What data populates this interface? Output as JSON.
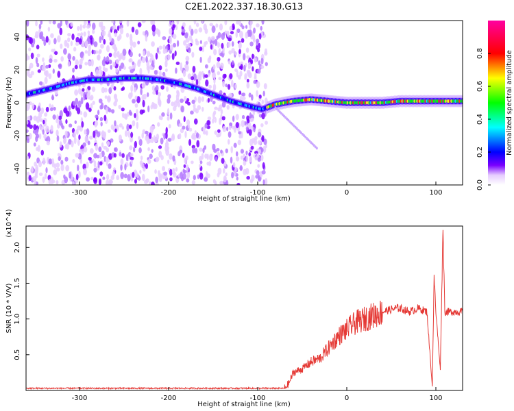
{
  "chart_data": [
    {
      "type": "heatmap",
      "title": "C2E1.2022.337.18.30.G13",
      "xlabel": "Height of straight line (km)",
      "ylabel": "Frequency (Hz)",
      "xlim": [
        -360,
        130
      ],
      "ylim": [
        -50,
        50
      ],
      "x_ticks": [
        -300,
        -200,
        -100,
        0,
        100
      ],
      "y_ticks": [
        -40,
        -20,
        0,
        20,
        40
      ],
      "colorbar": {
        "label": "Normalized spectral amplitude",
        "range": [
          0,
          1
        ],
        "ticks": [
          0.0,
          0.2,
          0.4,
          0.6,
          0.8
        ],
        "colors": [
          "#ffffff",
          "#d9b3ff",
          "#7a00ff",
          "#0000ff",
          "#00ffff",
          "#00ff00",
          "#ffff00",
          "#ff0000",
          "#ff00ff"
        ]
      },
      "noise_region_x": [
        -360,
        -90
      ],
      "ridge": {
        "x": [
          -360,
          -345,
          -330,
          -310,
          -290,
          -270,
          -250,
          -230,
          -210,
          -190,
          -170,
          -150,
          -130,
          -110,
          -95,
          -80,
          -60,
          -40,
          -20,
          0,
          20,
          40,
          60,
          80,
          100,
          120,
          130
        ],
        "y": [
          5,
          7,
          9,
          12,
          14,
          14,
          15,
          15,
          14,
          12,
          9,
          5,
          1,
          -2,
          -4,
          -1,
          1,
          2,
          1,
          0,
          0,
          0,
          1,
          1,
          1,
          1,
          1
        ]
      }
    },
    {
      "type": "line",
      "xlabel": "Height of straight line (km)",
      "ylabel": "SNR (10 * V/V)",
      "y_multiplier": "(x10^4)",
      "xlim": [
        -360,
        130
      ],
      "ylim": [
        0,
        2.3
      ],
      "x_ticks": [
        -300,
        -200,
        -100,
        0,
        100
      ],
      "y_ticks": [
        0.5,
        1.0,
        1.5,
        2.0
      ],
      "series": [
        {
          "color": "#e53935",
          "x": [
            -360,
            -300,
            -200,
            -100,
            -70,
            -65,
            -60,
            -50,
            -40,
            -30,
            -20,
            -10,
            0,
            10,
            20,
            30,
            40,
            55,
            60,
            70,
            80,
            90,
            96,
            98,
            100,
            105,
            108,
            110,
            115,
            120,
            130
          ],
          "y": [
            0.03,
            0.03,
            0.03,
            0.03,
            0.03,
            0.1,
            0.25,
            0.3,
            0.4,
            0.45,
            0.6,
            0.75,
            0.85,
            0.95,
            1.0,
            1.05,
            1.1,
            1.15,
            1.15,
            1.1,
            1.15,
            1.1,
            0.05,
            1.6,
            1.1,
            0.3,
            2.3,
            1.1,
            1.1,
            1.1,
            1.1
          ]
        }
      ]
    }
  ]
}
